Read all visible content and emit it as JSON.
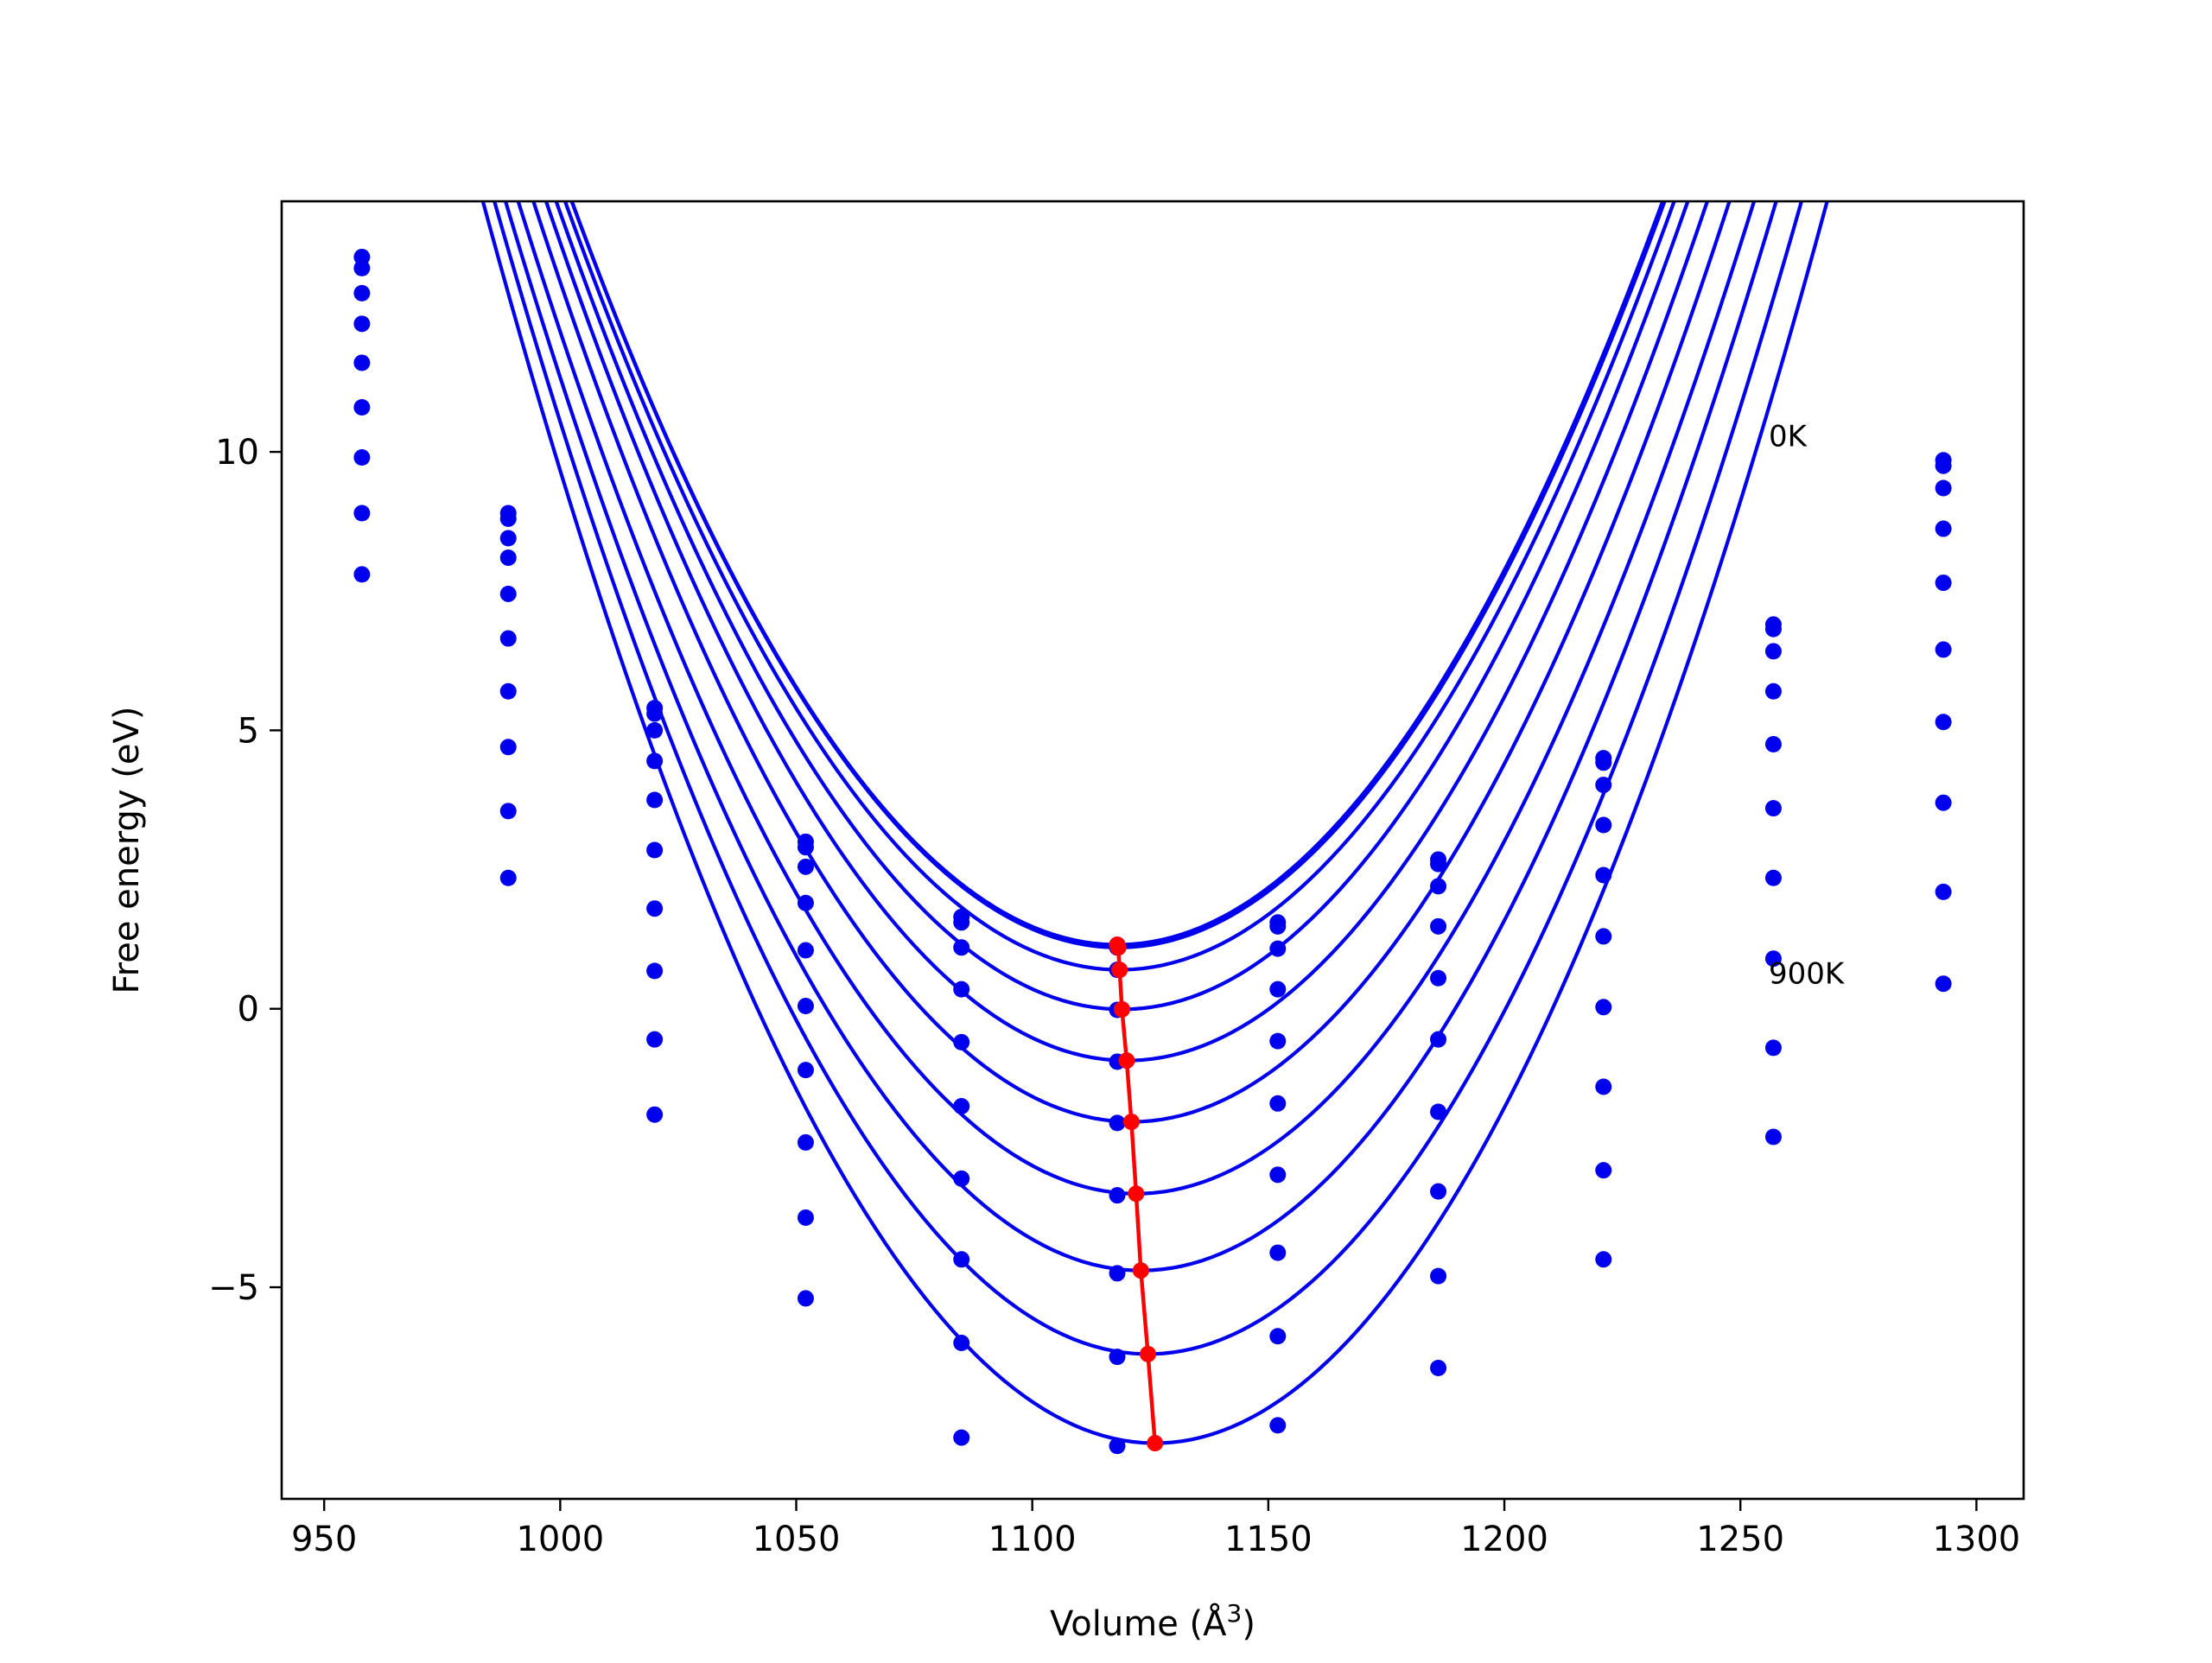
{
  "chart_data": {
    "type": "line",
    "title": "",
    "xlabel": "Volume (Å",
    "xlabel_sup": "3",
    "xlabel_close": ")",
    "ylabel": "Free energy (eV)",
    "xlim": [
      941,
      1310
    ],
    "ylim": [
      -8.8,
      14.5
    ],
    "xticks": [
      950,
      1000,
      1050,
      1100,
      1150,
      1200,
      1250,
      1300
    ],
    "xtick_labels": [
      "950",
      "1000",
      "1050",
      "1100",
      "1150",
      "1200",
      "1250",
      "1300"
    ],
    "yticks": [
      -5,
      0,
      5,
      10
    ],
    "ytick_labels": [
      "−5",
      "0",
      "5",
      "10"
    ],
    "grid": false,
    "legend": "none",
    "colors": {
      "curves": "#0000ee",
      "minima": "#ff0000",
      "axes": "#000000"
    },
    "x": [
      958,
      989,
      1020,
      1052,
      1085,
      1118,
      1152,
      1186,
      1221,
      1257,
      1293
    ],
    "series": [
      {
        "V0": 1118.0,
        "E0": 1.15,
        "B": 0.001,
        "values": [
          13.5,
          8.9,
          5.4,
          3.0,
          1.65,
          1.15,
          1.55,
          2.68,
          4.5,
          6.9,
          9.85
        ]
      },
      {
        "V0": 1118.2,
        "E0": 1.1,
        "B": 0.001,
        "values": [
          13.3,
          8.8,
          5.3,
          2.9,
          1.55,
          1.1,
          1.48,
          2.6,
          4.42,
          6.82,
          9.75
        ]
      },
      {
        "V0": 1118.5,
        "E0": 0.7,
        "B": 0.001,
        "values": [
          12.85,
          8.45,
          5.0,
          2.55,
          1.1,
          0.7,
          1.08,
          2.2,
          4.02,
          6.42,
          9.35
        ]
      },
      {
        "V0": 1119.0,
        "E0": -0.01,
        "B": 0.00101,
        "values": [
          12.3,
          8.1,
          4.45,
          1.9,
          0.35,
          -0.02,
          0.35,
          1.48,
          3.3,
          5.7,
          8.62
        ]
      },
      {
        "V0": 1120.0,
        "E0": -0.93,
        "B": 0.00102,
        "values": [
          11.6,
          7.45,
          3.75,
          1.05,
          -0.6,
          -0.95,
          -0.58,
          0.55,
          2.4,
          4.75,
          7.65
        ]
      },
      {
        "V0": 1121.0,
        "E0": -2.03,
        "B": 0.00103,
        "values": [
          10.8,
          6.65,
          2.85,
          0.05,
          -1.75,
          -2.05,
          -1.7,
          -0.55,
          1.3,
          3.6,
          6.45
        ]
      },
      {
        "V0": 1122.0,
        "E0": -3.32,
        "B": 0.00104,
        "values": [
          9.9,
          5.7,
          1.8,
          -1.1,
          -3.05,
          -3.35,
          -2.98,
          -1.85,
          0.03,
          2.35,
          5.15
        ]
      },
      {
        "V0": 1123.0,
        "E0": -4.7,
        "B": 0.00106,
        "values": [
          8.9,
          4.7,
          0.68,
          -2.4,
          -4.5,
          -4.75,
          -4.38,
          -3.28,
          -1.4,
          0.9,
          3.7
        ]
      },
      {
        "V0": 1124.5,
        "E0": -6.2,
        "B": 0.00108,
        "values": [
          7.8,
          3.55,
          -0.55,
          -3.75,
          -6.0,
          -6.25,
          -5.88,
          -4.8,
          -2.9,
          -0.7,
          2.1
        ]
      },
      {
        "V0": 1126.0,
        "E0": -7.8,
        "B": 0.0011,
        "values": [
          null,
          2.35,
          -1.9,
          -5.2,
          -7.7,
          -7.85,
          -7.48,
          -6.45,
          -4.5,
          -2.3,
          0.45
        ]
      }
    ],
    "minima": {
      "x": [
        1118.0,
        1118.2,
        1118.5,
        1119.0,
        1120.0,
        1121.0,
        1122.0,
        1123.0,
        1124.5,
        1126.0
      ],
      "y": [
        1.15,
        1.1,
        0.7,
        -0.01,
        -0.93,
        -2.03,
        -3.32,
        -4.7,
        -6.2,
        -7.8
      ]
    },
    "annotations": [
      {
        "text": "0K",
        "x": 1256,
        "y": 10.1
      },
      {
        "text": "900K",
        "x": 1256,
        "y": 0.45
      }
    ]
  }
}
